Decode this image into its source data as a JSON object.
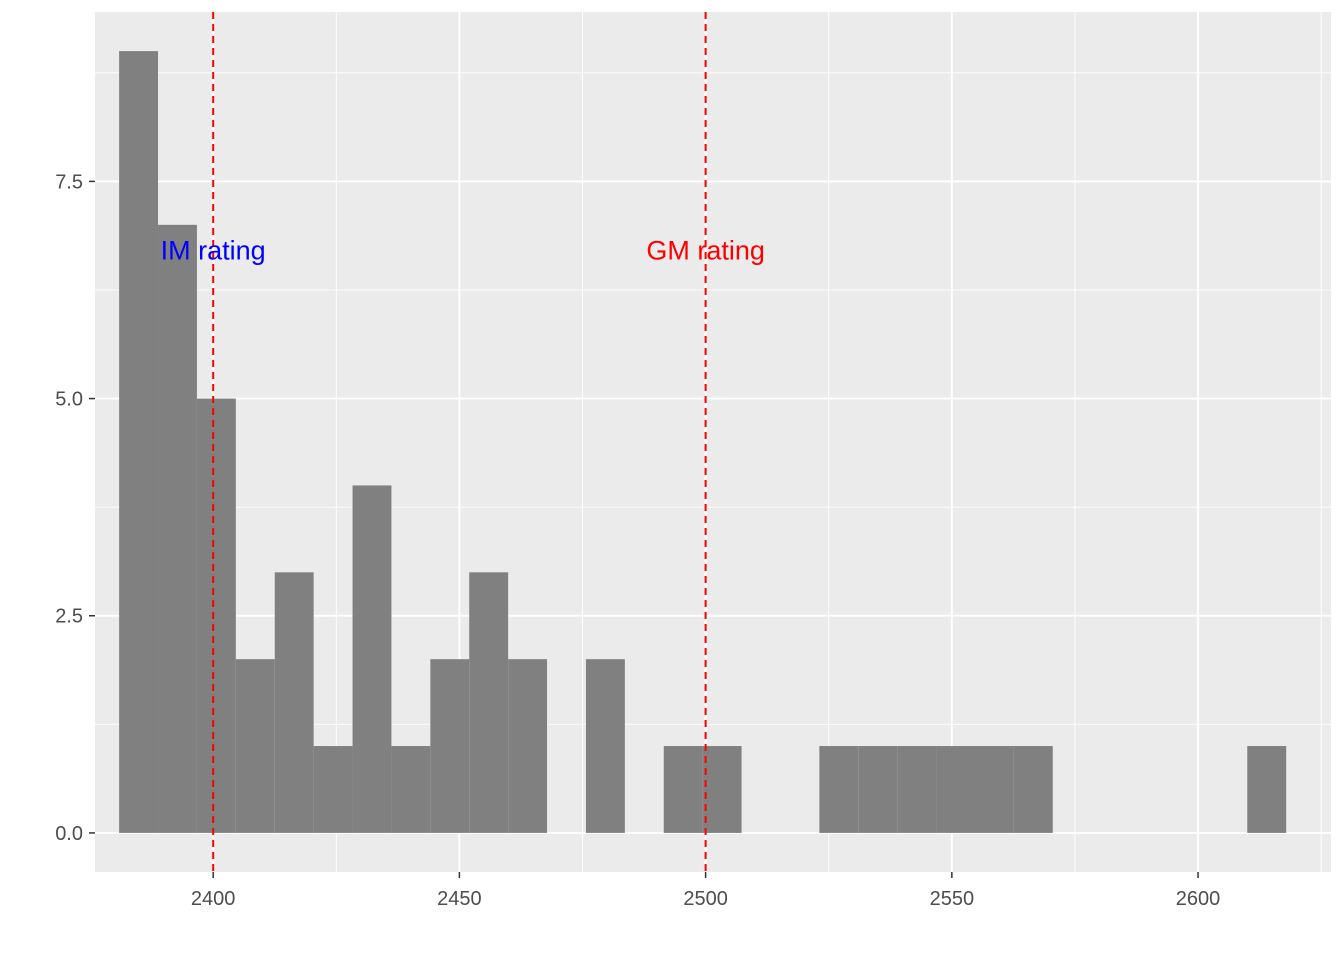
{
  "chart_data": {
    "type": "bar",
    "subtype": "histogram",
    "title": "",
    "xlabel": "",
    "ylabel": "",
    "xlim": [
      2376,
      2627
    ],
    "ylim": [
      -0.45,
      9.45
    ],
    "grid": true,
    "panel_background": "#ebebeb",
    "grid_color": "#ffffff",
    "bar_color": "#808080",
    "x_ticks": [
      2400,
      2450,
      2500,
      2550,
      2600
    ],
    "x_tick_labels": [
      "2400",
      "2450",
      "2500",
      "2550",
      "2600"
    ],
    "y_ticks": [
      0,
      2.5,
      5,
      7.5
    ],
    "y_tick_labels": [
      "0.0",
      "2.5",
      "5.0",
      "7.5"
    ],
    "bin_width": 7.9,
    "bins": [
      {
        "start": 2380.9,
        "count": 9
      },
      {
        "start": 2388.8,
        "count": 7
      },
      {
        "start": 2396.7,
        "count": 5
      },
      {
        "start": 2404.6,
        "count": 2
      },
      {
        "start": 2412.5,
        "count": 3
      },
      {
        "start": 2420.4,
        "count": 1
      },
      {
        "start": 2428.3,
        "count": 4
      },
      {
        "start": 2436.2,
        "count": 1
      },
      {
        "start": 2444.1,
        "count": 2
      },
      {
        "start": 2452.0,
        "count": 3
      },
      {
        "start": 2459.9,
        "count": 2
      },
      {
        "start": 2475.7,
        "count": 2
      },
      {
        "start": 2491.5,
        "count": 1
      },
      {
        "start": 2499.4,
        "count": 1
      },
      {
        "start": 2523.1,
        "count": 1
      },
      {
        "start": 2531.0,
        "count": 1
      },
      {
        "start": 2538.9,
        "count": 1
      },
      {
        "start": 2546.8,
        "count": 1
      },
      {
        "start": 2554.7,
        "count": 1
      },
      {
        "start": 2562.6,
        "count": 1
      },
      {
        "start": 2610.0,
        "count": 1
      }
    ],
    "reference_lines": [
      {
        "x": 2400,
        "color": "#ff0000",
        "style": "dashed"
      },
      {
        "x": 2500,
        "color": "#ff0000",
        "style": "dashed"
      }
    ],
    "annotations": [
      {
        "text": "IM rating",
        "x": 2400,
        "y": 6.6,
        "color": "#0000ff"
      },
      {
        "text": "GM rating",
        "x": 2500,
        "y": 6.6,
        "color": "#ff0000"
      }
    ]
  }
}
